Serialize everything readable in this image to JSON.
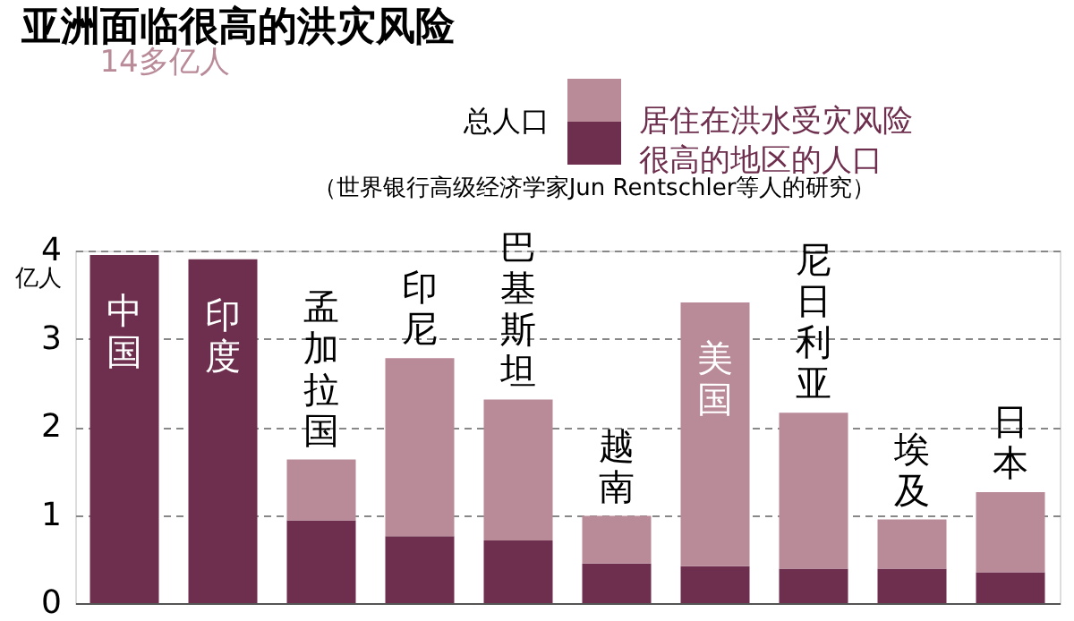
{
  "chart_data": {
    "type": "bar",
    "stacked": true,
    "title": "亚洲面临很高的洪灾风险",
    "ylabel": "亿人",
    "categories": [
      "中国",
      "印度",
      "孟加拉国",
      "印尼",
      "巴基斯坦",
      "越南",
      "美国",
      "尼日利亚",
      "埃及",
      "日本"
    ],
    "series": [
      {
        "name": "居住在洪水受灾风险很高的地区的人口",
        "color": "#6e2f4e",
        "values": [
          3.95,
          3.9,
          0.94,
          0.76,
          0.71,
          0.45,
          0.42,
          0.39,
          0.39,
          0.35
        ]
      },
      {
        "color": "#b98a98",
        "values": [
          null,
          null,
          0.69,
          2.02,
          1.6,
          0.54,
          2.99,
          1.77,
          0.56,
          0.91
        ]
      }
    ],
    "legend_title": "总人口",
    "annotations": [
      "14多亿人",
      "（世界银行高级经济学家Jun Rentschler等人的研究）"
    ],
    "ylim": [
      0,
      4
    ],
    "yticks": [
      0,
      1,
      2,
      3,
      4
    ],
    "grid": "y",
    "legend": "top right"
  }
}
